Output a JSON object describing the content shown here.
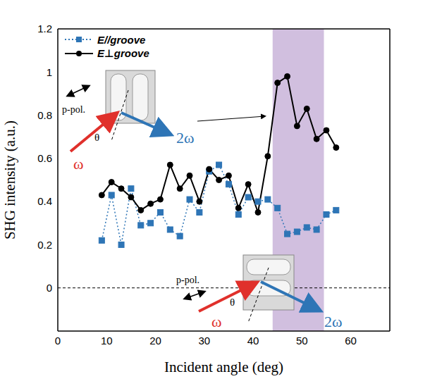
{
  "chart_data": {
    "type": "line",
    "x_label": "Incident angle (deg)",
    "y_label": "SHG intensity (a.u.)",
    "x": [
      9,
      11,
      13,
      15,
      17,
      19,
      21,
      23,
      25,
      27,
      29,
      31,
      33,
      35,
      37,
      39,
      41,
      43,
      45,
      47,
      49,
      51,
      53,
      55,
      57
    ],
    "series": [
      {
        "name": "E//groove",
        "color": "#2e75b6",
        "marker": "square",
        "line_style": "dotted",
        "values": [
          0.22,
          0.43,
          0.2,
          0.46,
          0.29,
          0.3,
          0.35,
          0.27,
          0.24,
          0.41,
          0.35,
          0.54,
          0.57,
          0.48,
          0.34,
          0.42,
          0.4,
          0.41,
          0.37,
          0.25,
          0.26,
          0.28,
          0.27,
          0.34,
          0.36
        ]
      },
      {
        "name": "E⊥groove",
        "color": "#000000",
        "marker": "circle",
        "line_style": "solid",
        "values": [
          0.43,
          0.49,
          0.46,
          0.42,
          0.36,
          0.39,
          0.41,
          0.57,
          0.46,
          0.52,
          0.4,
          0.55,
          0.5,
          0.52,
          0.37,
          0.48,
          0.35,
          0.61,
          0.95,
          0.98,
          0.75,
          0.83,
          0.69,
          0.73,
          0.65
        ]
      }
    ],
    "xlim": [
      0,
      68
    ],
    "ylim": [
      -0.2,
      1.2
    ],
    "xticks": [
      0,
      10,
      20,
      30,
      40,
      50,
      60
    ],
    "yticks": [
      0,
      0.2,
      0.4,
      0.6,
      0.8,
      1,
      1.2
    ],
    "legend": "upper left",
    "highlight": {
      "x": [
        44,
        54.5
      ],
      "color": "#c9b4d9"
    },
    "reference_line": {
      "y": 0
    },
    "annotations": [
      {
        "polarization": "p-pol.",
        "input": "ω",
        "output": "2ω",
        "angle": "θ"
      },
      {
        "polarization": "p-pol.",
        "input": "ω",
        "output": "2ω",
        "angle": "θ"
      }
    ]
  }
}
